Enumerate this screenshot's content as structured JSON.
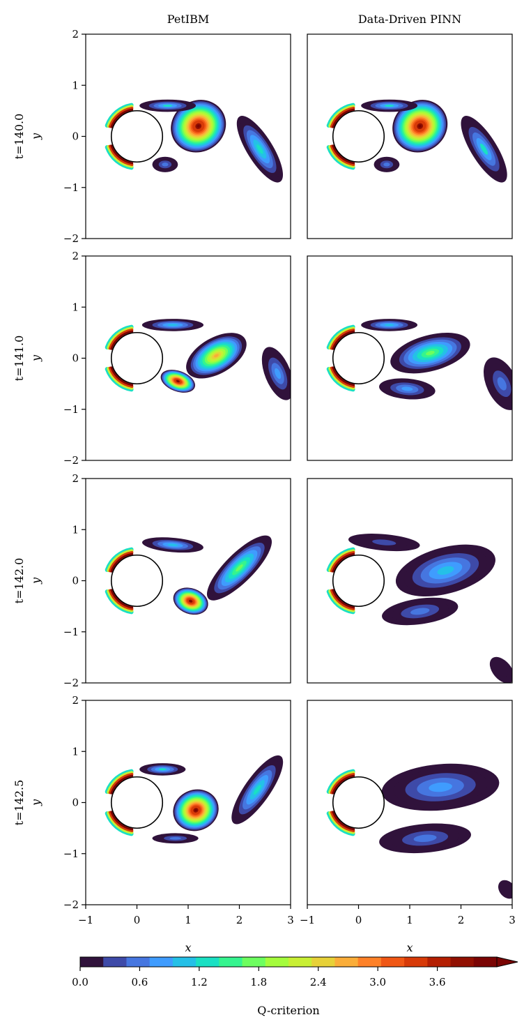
{
  "chart_data": {
    "type": "heatmap",
    "columns": [
      "PetIBM",
      "Data-Driven PINN"
    ],
    "rows": [
      {
        "label": "t=140.0",
        "t": 140.0
      },
      {
        "label": "t=141.0",
        "t": 141.0
      },
      {
        "label": "t=142.0",
        "t": 142.0
      },
      {
        "label": "t=142.5",
        "t": 142.5
      }
    ],
    "xlabel": "x",
    "ylabel": "y",
    "xlim": [
      -1,
      3
    ],
    "ylim": [
      -2,
      2
    ],
    "xticks": [
      -1,
      0,
      1,
      2,
      3
    ],
    "xtick_labels": [
      "−1",
      "0",
      "1",
      "2",
      "3"
    ],
    "yticks": [
      2,
      1,
      0,
      -1,
      -2
    ],
    "ytick_labels": [
      "2",
      "1",
      "0",
      "−1",
      "−2"
    ],
    "cylinder": {
      "cx": 0,
      "cy": 0,
      "r": 0.5
    },
    "colorbar": {
      "label": "Q-criterion",
      "range": [
        0.0,
        4.2
      ],
      "extend": "max",
      "ticks": [
        0.0,
        0.6,
        1.2,
        1.8,
        2.4,
        3.0,
        3.6
      ],
      "tick_labels": [
        "0.0",
        "0.6",
        "1.2",
        "1.8",
        "2.4",
        "3.0",
        "3.6"
      ],
      "colors": [
        "#30123b",
        "#3e4aa8",
        "#4676e0",
        "#3f9cfe",
        "#25c0e7",
        "#1ae0c3",
        "#35f48f",
        "#6dfe5f",
        "#a4fc3c",
        "#c8ef34",
        "#e7d138",
        "#faad39",
        "#fe8128",
        "#f05715",
        "#d73a08",
        "#b41f02",
        "#911001",
        "#7a0403"
      ]
    },
    "panels": [
      [
        {
          "blobs": [
            {
              "cx": 1.2,
              "cy": 0.2,
              "rx": 0.55,
              "ry": 0.5,
              "rot": -30,
              "peak": 4.2
            },
            {
              "cx": 0.6,
              "cy": 0.6,
              "rx": 0.55,
              "ry": 0.12,
              "rot": 0,
              "peak": 1.4
            },
            {
              "cx": 0.55,
              "cy": -0.55,
              "rx": 0.25,
              "ry": 0.15,
              "rot": 0,
              "peak": 0.8
            },
            {
              "cx": 2.4,
              "cy": -0.25,
              "rx": 0.75,
              "ry": 0.25,
              "rot": 58,
              "peak": 1.6
            }
          ]
        },
        {
          "blobs": [
            {
              "cx": 1.2,
              "cy": 0.2,
              "rx": 0.55,
              "ry": 0.5,
              "rot": -30,
              "peak": 4.2
            },
            {
              "cx": 0.6,
              "cy": 0.6,
              "rx": 0.55,
              "ry": 0.12,
              "rot": 0,
              "peak": 1.4
            },
            {
              "cx": 0.55,
              "cy": -0.55,
              "rx": 0.25,
              "ry": 0.15,
              "rot": 0,
              "peak": 0.8
            },
            {
              "cx": 2.45,
              "cy": -0.25,
              "rx": 0.75,
              "ry": 0.25,
              "rot": 58,
              "peak": 1.4
            }
          ]
        }
      ],
      [
        {
          "blobs": [
            {
              "cx": 1.55,
              "cy": 0.05,
              "rx": 0.65,
              "ry": 0.35,
              "rot": -30,
              "peak": 2.9
            },
            {
              "cx": 0.7,
              "cy": 0.65,
              "rx": 0.6,
              "ry": 0.12,
              "rot": 0,
              "peak": 1.2
            },
            {
              "cx": 0.8,
              "cy": -0.45,
              "rx": 0.35,
              "ry": 0.2,
              "rot": 20,
              "peak": 4.2
            },
            {
              "cx": 2.75,
              "cy": -0.3,
              "rx": 0.55,
              "ry": 0.25,
              "rot": 68,
              "peak": 1.0
            }
          ]
        },
        {
          "blobs": [
            {
              "cx": 1.4,
              "cy": 0.1,
              "rx": 0.8,
              "ry": 0.35,
              "rot": -15,
              "peak": 2.0
            },
            {
              "cx": 0.6,
              "cy": 0.65,
              "rx": 0.55,
              "ry": 0.12,
              "rot": 0,
              "peak": 1.2
            },
            {
              "cx": 0.95,
              "cy": -0.6,
              "rx": 0.55,
              "ry": 0.2,
              "rot": 5,
              "peak": 1.1
            },
            {
              "cx": 2.8,
              "cy": -0.5,
              "rx": 0.55,
              "ry": 0.3,
              "rot": 65,
              "peak": 0.9
            }
          ]
        }
      ],
      [
        {
          "blobs": [
            {
              "cx": 2.0,
              "cy": 0.25,
              "rx": 0.85,
              "ry": 0.28,
              "rot": -45,
              "peak": 2.0
            },
            {
              "cx": 0.7,
              "cy": 0.7,
              "rx": 0.6,
              "ry": 0.14,
              "rot": 5,
              "peak": 1.2
            },
            {
              "cx": 1.05,
              "cy": -0.4,
              "rx": 0.35,
              "ry": 0.25,
              "rot": 20,
              "peak": 4.2
            }
          ]
        },
        {
          "blobs": [
            {
              "cx": 1.7,
              "cy": 0.2,
              "rx": 1.0,
              "ry": 0.45,
              "rot": -15,
              "peak": 1.2
            },
            {
              "cx": 0.5,
              "cy": 0.75,
              "rx": 0.7,
              "ry": 0.16,
              "rot": 5,
              "peak": 0.6
            },
            {
              "cx": 1.2,
              "cy": -0.6,
              "rx": 0.75,
              "ry": 0.25,
              "rot": -8,
              "peak": 0.8
            },
            {
              "cx": 2.8,
              "cy": -1.75,
              "rx": 0.3,
              "ry": 0.18,
              "rot": 50,
              "peak": 0.3
            }
          ]
        }
      ],
      [
        {
          "blobs": [
            {
              "cx": 1.15,
              "cy": -0.15,
              "rx": 0.45,
              "ry": 0.4,
              "rot": -20,
              "peak": 4.2
            },
            {
              "cx": 0.5,
              "cy": 0.65,
              "rx": 0.45,
              "ry": 0.12,
              "rot": 0,
              "peak": 1.4
            },
            {
              "cx": 0.75,
              "cy": -0.7,
              "rx": 0.45,
              "ry": 0.1,
              "rot": 0,
              "peak": 0.8
            },
            {
              "cx": 2.35,
              "cy": 0.25,
              "rx": 0.8,
              "ry": 0.25,
              "rot": -55,
              "peak": 1.6
            }
          ]
        },
        {
          "blobs": [
            {
              "cx": 1.6,
              "cy": 0.3,
              "rx": 1.15,
              "ry": 0.45,
              "rot": -5,
              "peak": 1.0
            },
            {
              "cx": 1.3,
              "cy": -0.7,
              "rx": 0.9,
              "ry": 0.28,
              "rot": -5,
              "peak": 0.8
            },
            {
              "cx": 2.9,
              "cy": -1.7,
              "rx": 0.2,
              "ry": 0.15,
              "rot": 50,
              "peak": 0.3
            }
          ]
        }
      ]
    ]
  }
}
